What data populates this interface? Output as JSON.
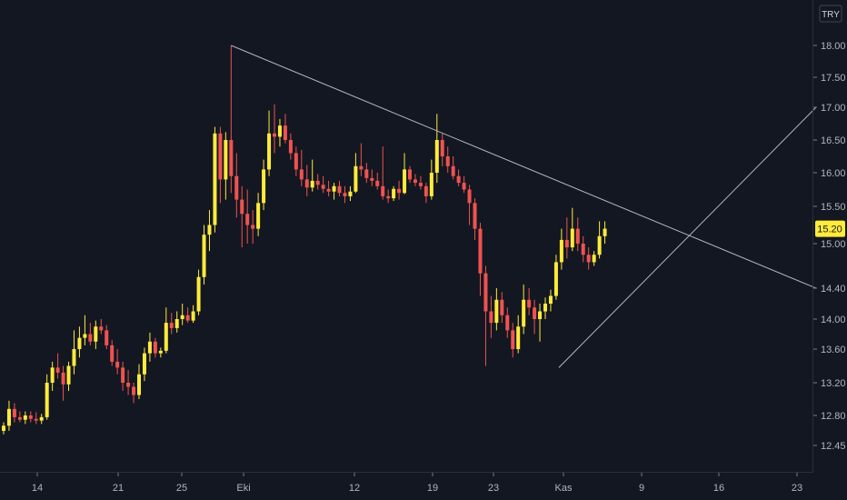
{
  "chart_data": {
    "type": "candlestick",
    "currency": "TRY",
    "current_price": "15.20",
    "y_ticks": [
      "18.00",
      "17.50",
      "17.00",
      "16.50",
      "16.00",
      "15.50",
      "15.00",
      "14.40",
      "14.00",
      "13.60",
      "13.20",
      "12.80",
      "12.45"
    ],
    "x_ticks": [
      "14",
      "21",
      "25",
      "Eki",
      "12",
      "19",
      "23",
      "Kas",
      "9",
      "16",
      "23"
    ],
    "colors": {
      "up": "#ffeb3b",
      "down": "#ef5350",
      "trendline": "#b2b5be",
      "background": "#131722",
      "axis_text": "#b2b5be"
    },
    "candles": [
      [
        12.62,
        12.72,
        12.58,
        12.68
      ],
      [
        12.68,
        12.98,
        12.62,
        12.88
      ],
      [
        12.88,
        12.95,
        12.72,
        12.78
      ],
      [
        12.78,
        12.85,
        12.72,
        12.75
      ],
      [
        12.75,
        12.85,
        12.7,
        12.8
      ],
      [
        12.8,
        12.85,
        12.72,
        12.76
      ],
      [
        12.76,
        12.84,
        12.7,
        12.74
      ],
      [
        12.74,
        12.82,
        12.7,
        12.78
      ],
      [
        12.78,
        13.3,
        12.75,
        13.2
      ],
      [
        13.2,
        13.45,
        13.1,
        13.38
      ],
      [
        13.38,
        13.55,
        13.25,
        13.32
      ],
      [
        13.32,
        13.4,
        12.98,
        13.18
      ],
      [
        13.18,
        13.45,
        13.1,
        13.4
      ],
      [
        13.4,
        13.85,
        13.3,
        13.6
      ],
      [
        13.6,
        13.9,
        13.5,
        13.75
      ],
      [
        13.75,
        14.05,
        13.65,
        13.8
      ],
      [
        13.8,
        13.95,
        13.65,
        13.7
      ],
      [
        13.7,
        13.98,
        13.6,
        13.9
      ],
      [
        13.9,
        14.0,
        13.8,
        13.85
      ],
      [
        13.85,
        13.92,
        13.6,
        13.65
      ],
      [
        13.65,
        13.72,
        13.4,
        13.45
      ],
      [
        13.45,
        13.6,
        13.3,
        13.38
      ],
      [
        13.38,
        13.45,
        13.1,
        13.2
      ],
      [
        13.2,
        13.35,
        13.05,
        13.15
      ],
      [
        13.15,
        13.2,
        12.95,
        13.05
      ],
      [
        13.05,
        13.42,
        13.0,
        13.3
      ],
      [
        13.3,
        13.62,
        13.22,
        13.55
      ],
      [
        13.55,
        13.82,
        13.45,
        13.7
      ],
      [
        13.7,
        13.75,
        13.5,
        13.55
      ],
      [
        13.55,
        13.62,
        13.5,
        13.58
      ],
      [
        13.58,
        14.15,
        13.55,
        13.95
      ],
      [
        13.95,
        14.08,
        13.8,
        13.88
      ],
      [
        13.88,
        14.1,
        13.82,
        14.0
      ],
      [
        14.0,
        14.2,
        13.92,
        14.05
      ],
      [
        14.05,
        14.15,
        13.95,
        13.98
      ],
      [
        13.98,
        14.18,
        13.95,
        14.1
      ],
      [
        14.1,
        14.65,
        14.05,
        14.55
      ],
      [
        14.55,
        15.25,
        14.45,
        15.12
      ],
      [
        15.12,
        15.45,
        14.9,
        15.25
      ],
      [
        15.25,
        16.7,
        15.15,
        16.6
      ],
      [
        16.6,
        16.7,
        15.55,
        15.9
      ],
      [
        15.9,
        16.62,
        15.6,
        16.5
      ],
      [
        16.5,
        18.0,
        15.7,
        15.95
      ],
      [
        15.95,
        16.3,
        15.35,
        15.6
      ],
      [
        15.6,
        15.8,
        14.95,
        15.4
      ],
      [
        15.4,
        15.75,
        15.0,
        15.25
      ],
      [
        15.25,
        15.45,
        15.0,
        15.2
      ],
      [
        15.2,
        15.7,
        15.1,
        15.55
      ],
      [
        15.55,
        16.2,
        15.45,
        16.05
      ],
      [
        16.05,
        16.95,
        15.95,
        16.6
      ],
      [
        16.6,
        17.05,
        16.3,
        16.55
      ],
      [
        16.55,
        16.82,
        16.4,
        16.72
      ],
      [
        16.72,
        16.9,
        16.45,
        16.5
      ],
      [
        16.5,
        16.6,
        16.2,
        16.3
      ],
      [
        16.3,
        16.4,
        15.95,
        16.05
      ],
      [
        16.05,
        16.35,
        15.8,
        15.9
      ],
      [
        15.9,
        16.12,
        15.65,
        15.78
      ],
      [
        15.78,
        16.2,
        15.72,
        15.88
      ],
      [
        15.88,
        15.98,
        15.75,
        15.82
      ],
      [
        15.82,
        15.95,
        15.7,
        15.76
      ],
      [
        15.76,
        15.88,
        15.65,
        15.72
      ],
      [
        15.72,
        15.85,
        15.6,
        15.8
      ],
      [
        15.8,
        15.88,
        15.65,
        15.7
      ],
      [
        15.7,
        15.8,
        15.55,
        15.65
      ],
      [
        15.65,
        15.8,
        15.58,
        15.72
      ],
      [
        15.72,
        16.3,
        15.7,
        16.1
      ],
      [
        16.1,
        16.45,
        15.95,
        16.05
      ],
      [
        16.05,
        16.15,
        15.85,
        15.92
      ],
      [
        15.92,
        16.05,
        15.8,
        15.88
      ],
      [
        15.88,
        16.0,
        15.75,
        15.8
      ],
      [
        15.8,
        16.4,
        15.6,
        15.65
      ],
      [
        15.65,
        15.75,
        15.55,
        15.62
      ],
      [
        15.62,
        15.8,
        15.58,
        15.76
      ],
      [
        15.76,
        15.88,
        15.6,
        15.7
      ],
      [
        15.7,
        16.3,
        15.68,
        16.05
      ],
      [
        16.05,
        16.1,
        15.85,
        15.9
      ],
      [
        15.9,
        15.98,
        15.8,
        15.85
      ],
      [
        15.85,
        15.95,
        15.75,
        15.8
      ],
      [
        15.8,
        15.85,
        15.55,
        15.65
      ],
      [
        15.65,
        16.2,
        15.6,
        16.0
      ],
      [
        16.0,
        16.9,
        15.85,
        16.5
      ],
      [
        16.5,
        16.6,
        16.1,
        16.25
      ],
      [
        16.25,
        16.4,
        16.0,
        16.1
      ],
      [
        16.1,
        16.25,
        15.9,
        15.95
      ],
      [
        15.95,
        16.05,
        15.8,
        15.85
      ],
      [
        15.85,
        15.95,
        15.7,
        15.75
      ],
      [
        15.75,
        15.82,
        15.25,
        15.55
      ],
      [
        15.55,
        15.62,
        15.05,
        15.2
      ],
      [
        15.2,
        15.28,
        14.3,
        14.6
      ],
      [
        14.6,
        14.7,
        13.4,
        14.1
      ],
      [
        14.1,
        14.3,
        13.75,
        13.95
      ],
      [
        13.95,
        14.4,
        13.85,
        14.25
      ],
      [
        14.25,
        14.35,
        13.95,
        14.05
      ],
      [
        14.05,
        14.15,
        13.75,
        13.85
      ],
      [
        13.85,
        13.95,
        13.5,
        13.6
      ],
      [
        13.6,
        14.05,
        13.55,
        13.9
      ],
      [
        13.9,
        14.45,
        13.8,
        14.25
      ],
      [
        14.25,
        14.4,
        14.05,
        14.15
      ],
      [
        14.15,
        14.25,
        13.8,
        14.0
      ],
      [
        14.0,
        14.2,
        13.7,
        14.1
      ],
      [
        14.1,
        14.28,
        14.0,
        14.2
      ],
      [
        14.2,
        14.38,
        14.1,
        14.3
      ],
      [
        14.3,
        14.85,
        14.25,
        14.75
      ],
      [
        14.75,
        15.2,
        14.65,
        15.05
      ],
      [
        15.05,
        15.35,
        14.8,
        14.95
      ],
      [
        14.95,
        15.48,
        14.9,
        15.2
      ],
      [
        15.2,
        15.35,
        14.9,
        15.0
      ],
      [
        15.0,
        15.1,
        14.75,
        14.85
      ],
      [
        14.85,
        14.95,
        14.65,
        14.75
      ],
      [
        14.75,
        14.9,
        14.7,
        14.85
      ],
      [
        14.85,
        15.3,
        14.8,
        15.1
      ],
      [
        15.1,
        15.3,
        15.0,
        15.2
      ]
    ],
    "trendlines": [
      {
        "name": "descending-resistance",
        "x1": 42,
        "y1": 18.0,
        "x2": 150,
        "y2": 14.4
      },
      {
        "name": "rising-support",
        "x1": 102.5,
        "y1": 13.38,
        "x2": 150,
        "y2": 17.0
      }
    ]
  }
}
